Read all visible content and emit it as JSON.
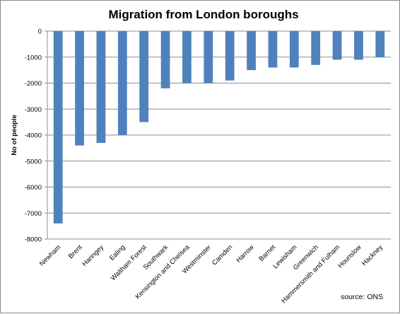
{
  "chart_data": {
    "type": "bar",
    "title": "Migration from London boroughs",
    "ylabel": "No of people",
    "xlabel": "",
    "source": "source: ONS",
    "categories": [
      "Newham",
      "Brent",
      "Haringey",
      "Ealing",
      "Waltham Forest",
      "Southwark",
      "Kensington and Chelsea",
      "Westminster",
      "Camden",
      "Harrow",
      "Barnet",
      "Lewisham",
      "Greenwich",
      "Hammersmith and Fulham",
      "Hounslow",
      "Hackney"
    ],
    "values": [
      -7400,
      -4400,
      -4300,
      -4000,
      -3500,
      -2200,
      -2000,
      -2000,
      -1900,
      -1500,
      -1400,
      -1400,
      -1300,
      -1100,
      -1100,
      -1000
    ],
    "ylim": [
      -8000,
      0
    ],
    "yticks": [
      0,
      -1000,
      -2000,
      -3000,
      -4000,
      -5000,
      -6000,
      -7000,
      -8000
    ],
    "grid": true,
    "legend": "none",
    "bar_color": "#4f81bd",
    "grid_color": "#8c8c8c"
  }
}
